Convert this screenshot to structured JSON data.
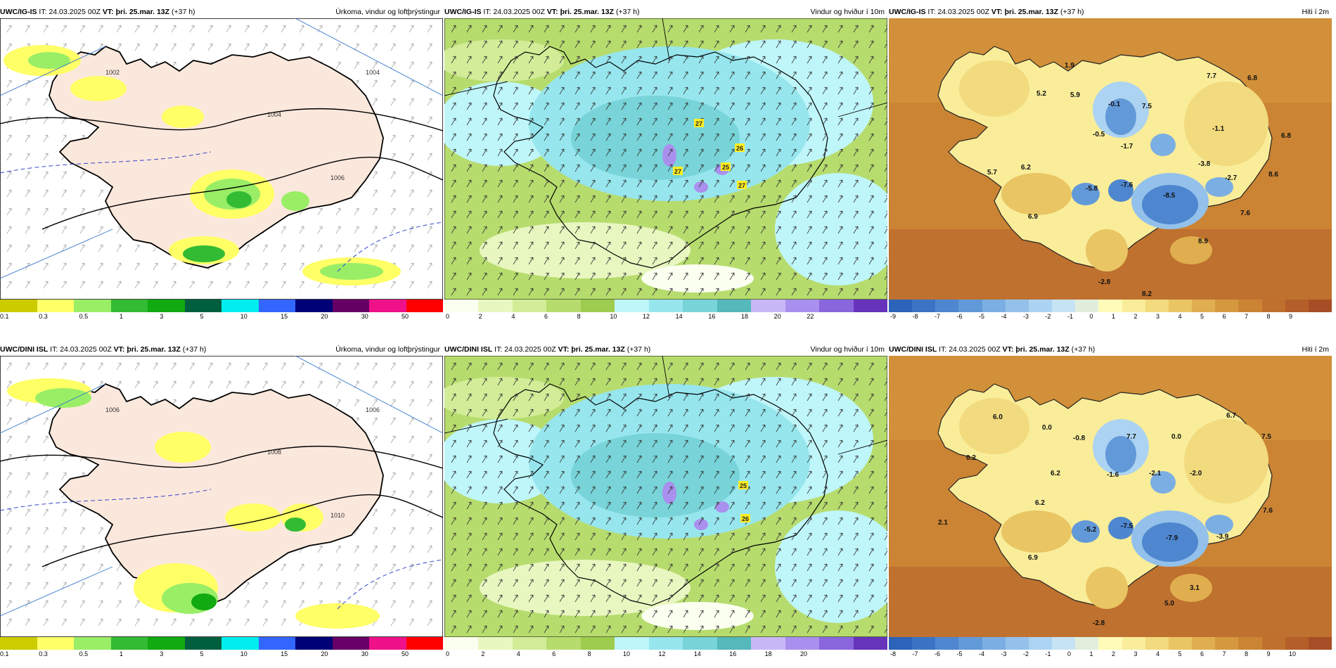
{
  "rows": [
    {
      "model": "UWC/IG-IS",
      "it_label": "IT:",
      "it_value": "24.03.2025 00Z",
      "vt_label": "VT:",
      "vt_value": "þri. 25.mar. 13Z",
      "lead": "(+37 h)",
      "precip_title": "Úrkoma, vindur og loftþrýstingur",
      "wind_title": "Vindur og hviður í 10m",
      "temp_title": "Hiti í 2m",
      "gust_labels": [
        "27",
        "27",
        "26",
        "25",
        "27"
      ],
      "temp_labels": [
        "1.9",
        "5.2",
        "5.9",
        "-0.1",
        "7.5",
        "7.7",
        "6.8",
        "-0.5",
        "-1.7",
        "-1.1",
        "6.8",
        "5.7",
        "6.2",
        "-3.8",
        "-5.8",
        "-7.6",
        "-8.5",
        "-2.7",
        "8.6",
        "6.9",
        "7.6",
        "8.9",
        "-2.8",
        "8.2"
      ],
      "isobar_labels": [
        "1004",
        "1002",
        "1004",
        "1006"
      ],
      "temp_ticks": [
        "-9",
        "-8",
        "-7",
        "-6",
        "-5",
        "-4",
        "-3",
        "-2",
        "-1",
        "0",
        "1",
        "2",
        "3",
        "4",
        "5",
        "6",
        "7",
        "8",
        "9"
      ],
      "wind_ticks": [
        "0",
        "2",
        "4",
        "6",
        "8",
        "10",
        "12",
        "14",
        "16",
        "18",
        "20",
        "22"
      ]
    },
    {
      "model": "UWC/DINI ISL",
      "it_label": "IT:",
      "it_value": "24.03.2025 00Z",
      "vt_label": "VT:",
      "vt_value": "þri. 25.mar. 13Z",
      "lead": "(+37 h)",
      "precip_title": "Úrkoma, vindur og loftþrýstingur",
      "wind_title": "Vindur og hviður í 10m",
      "temp_title": "Hiti í 2m",
      "gust_labels": [
        "25",
        "26"
      ],
      "temp_labels": [
        "6.0",
        "0.0",
        "0.2",
        "-0.8",
        "7.7",
        "0.0",
        "6.7",
        "7.5",
        "6.2",
        "-1.6",
        "-2.1",
        "-2.0",
        "6.2",
        "2.1",
        "-5.2",
        "-7.5",
        "-7.9",
        "-3.9",
        "7.6",
        "6.9",
        "3.1",
        "5.0",
        "-2.8"
      ],
      "isobar_labels": [
        "1006",
        "1006",
        "1008",
        "1010"
      ],
      "temp_ticks": [
        "-8",
        "-7",
        "-6",
        "-5",
        "-4",
        "-3",
        "-2",
        "-1",
        "0",
        "1",
        "2",
        "3",
        "4",
        "5",
        "6",
        "7",
        "8",
        "9",
        "10"
      ],
      "wind_ticks": [
        "0",
        "2",
        "4",
        "6",
        "8",
        "10",
        "12",
        "14",
        "16",
        "18",
        "20"
      ]
    }
  ],
  "precip_ticks": [
    "0.1",
    "0.3",
    "0.5",
    "1",
    "3",
    "5",
    "10",
    "15",
    "20",
    "30",
    "50"
  ],
  "colors": {
    "precip_scale": [
      "#cccc00",
      "#ffff66",
      "#99ee66",
      "#33bb33",
      "#11aa11",
      "#005f3f",
      "#00eeee",
      "#3366ff",
      "#000077",
      "#660066",
      "#ee1188",
      "#ff0000"
    ],
    "wind_scale": [
      "#fafff0",
      "#e8f7c0",
      "#d2ec98",
      "#b7dc6e",
      "#9dcc4e",
      "#bff6fa",
      "#97e6ee",
      "#78d4d8",
      "#55b8ba",
      "#c8b8f8",
      "#aa90ee",
      "#8a66dd",
      "#6633bb"
    ],
    "temp_scale": [
      "#2d63b8",
      "#3b74c4",
      "#4e86cf",
      "#6299d8",
      "#7baee2",
      "#93c1eb",
      "#acd3f2",
      "#c6e3f4",
      "#e1eedc",
      "#fffbb8",
      "#f9ed9a",
      "#f2da7e",
      "#e9c563",
      "#e0ae4e",
      "#d6983e",
      "#cb8434",
      "#c0702e",
      "#b45e2a",
      "#a84e26"
    ],
    "land": "#fbe8dc",
    "sea": "#ffffff"
  }
}
